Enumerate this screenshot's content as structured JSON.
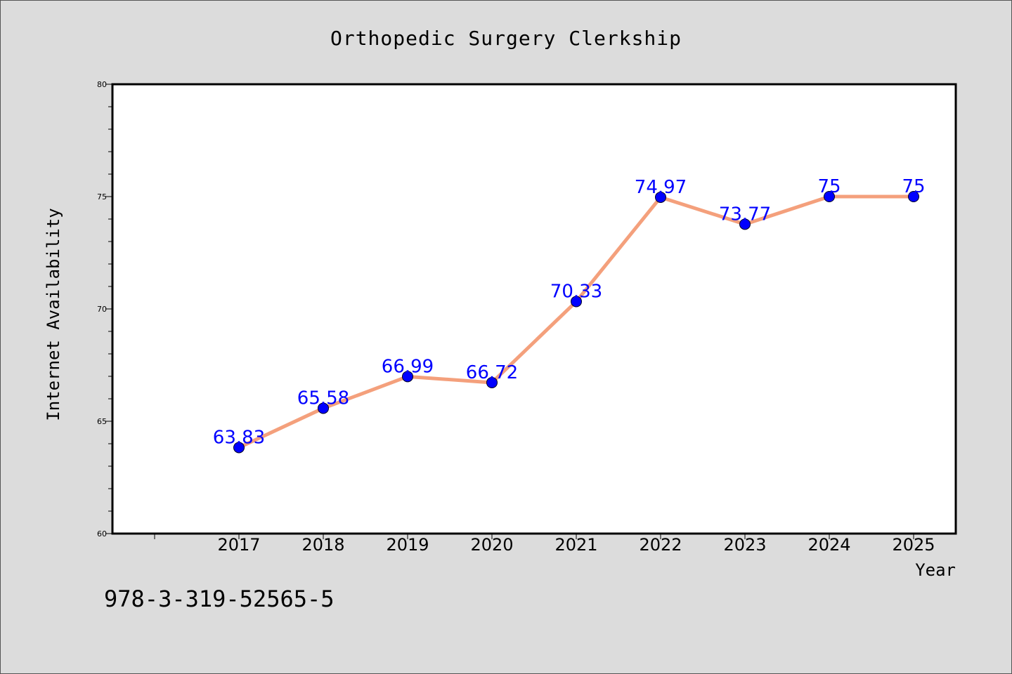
{
  "footnote": "978-3-319-52565-5",
  "chart_data": {
    "type": "line",
    "title": "Orthopedic Surgery Clerkship",
    "xlabel": "Year",
    "ylabel": "Internet Availability",
    "categories": [
      "2017",
      "2018",
      "2019",
      "2020",
      "2021",
      "2022",
      "2023",
      "2024",
      "2025"
    ],
    "values": [
      63.83,
      65.58,
      66.99,
      66.72,
      70.33,
      74.97,
      73.77,
      75,
      75
    ],
    "data_labels": [
      "63.83",
      "65.58",
      "66.99",
      "66.72",
      "70.33",
      "74.97",
      "73.77",
      "75",
      "75"
    ],
    "ylim": [
      60,
      80
    ],
    "yticks": [
      "60",
      "65",
      "70",
      "75",
      "80"
    ],
    "line_color": "#f4a07c",
    "marker_color": "#0000ff",
    "label_color": "#0000ff",
    "grid": false,
    "legend": "none"
  }
}
